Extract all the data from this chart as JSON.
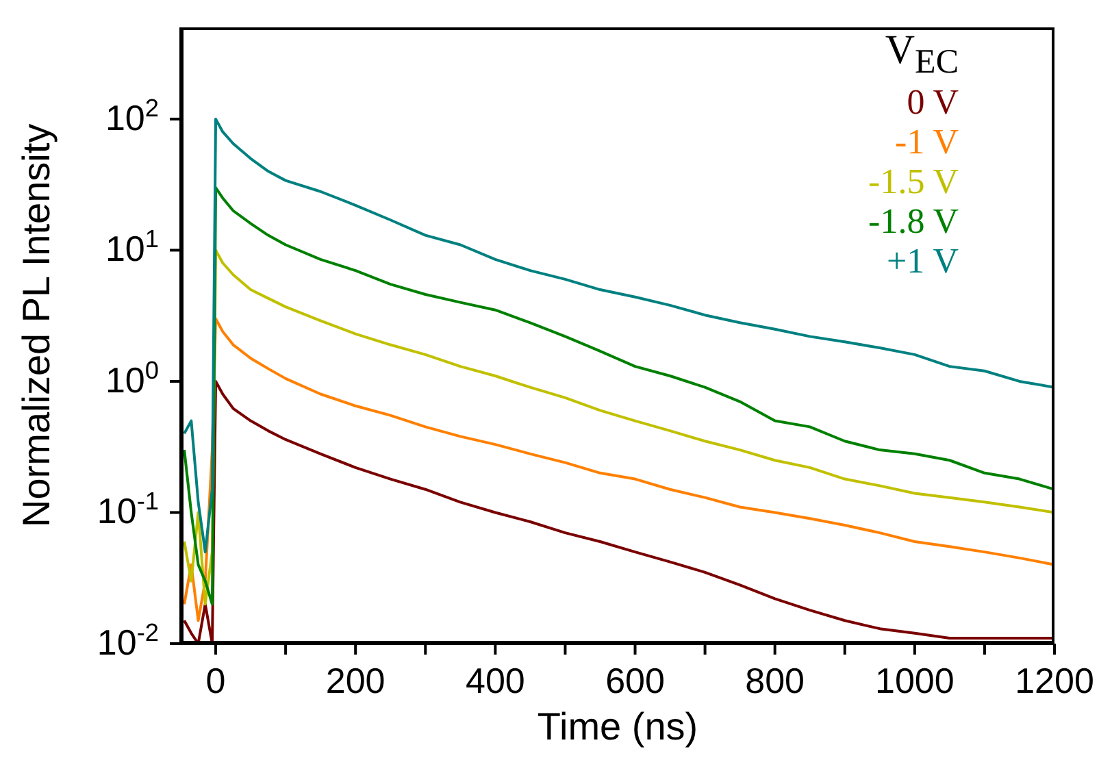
{
  "chart_data": {
    "type": "line",
    "xlabel": "Time (ns)",
    "ylabel": "Normalized PL Intensity",
    "legend_title": "V$_{EC}$",
    "legend": "top right",
    "marker": "none",
    "line_style": "solid",
    "log": "y",
    "xlim": [
      -50,
      1200
    ],
    "xticks": [
      0,
      {
        "value": 100,
        "label": null
      },
      200,
      {
        "value": 300,
        "label": null
      },
      400,
      {
        "value": 500,
        "label": null
      },
      600,
      {
        "value": 700,
        "label": null
      },
      800,
      {
        "value": 900,
        "label": null
      },
      1000,
      {
        "value": 1100,
        "label": null
      },
      1200
    ],
    "ylim": [
      0.01,
      500
    ],
    "yticks": [
      {
        "value": 0.01,
        "label": "10$^{-2}$"
      },
      {
        "value": 0.1,
        "label": "10$^{-1}$"
      },
      {
        "value": 1,
        "label": "10$^{0}$"
      },
      {
        "value": 10,
        "label": "10$^{1}$"
      },
      {
        "value": 100,
        "label": "10$^{2}$"
      }
    ],
    "x": [
      -45,
      -35,
      -25,
      -15,
      -5,
      0,
      10,
      25,
      50,
      75,
      100,
      150,
      200,
      250,
      300,
      350,
      400,
      450,
      500,
      550,
      600,
      650,
      700,
      750,
      800,
      850,
      900,
      950,
      1000,
      1050,
      1100,
      1150,
      1200
    ],
    "series": [
      {
        "name": "0 V",
        "color": "#7a0000",
        "values": [
          0.015,
          0.012,
          0.01,
          0.02,
          0.01,
          1,
          0.8,
          0.62,
          0.5,
          0.42,
          0.36,
          0.28,
          0.22,
          0.18,
          0.15,
          0.12,
          0.1,
          0.085,
          0.07,
          0.06,
          0.05,
          0.042,
          0.035,
          0.028,
          0.022,
          0.018,
          0.015,
          0.013,
          0.012,
          0.011,
          0.011,
          0.011,
          0.011
        ]
      },
      {
        "name": "-1 V",
        "color": "#ff8000",
        "values": [
          0.02,
          0.04,
          0.015,
          0.03,
          0.3,
          3,
          2.4,
          1.9,
          1.5,
          1.25,
          1.05,
          0.8,
          0.65,
          0.55,
          0.45,
          0.38,
          0.33,
          0.28,
          0.24,
          0.2,
          0.18,
          0.15,
          0.13,
          0.11,
          0.1,
          0.09,
          0.08,
          0.07,
          0.06,
          0.055,
          0.05,
          0.045,
          0.04
        ]
      },
      {
        "name": "-1.5 V",
        "color": "#c0c000",
        "values": [
          0.06,
          0.03,
          0.1,
          0.02,
          0.05,
          10,
          8,
          6.5,
          5,
          4.3,
          3.7,
          2.9,
          2.3,
          1.9,
          1.6,
          1.3,
          1.1,
          0.9,
          0.75,
          0.6,
          0.5,
          0.42,
          0.35,
          0.3,
          0.25,
          0.22,
          0.18,
          0.16,
          0.14,
          0.13,
          0.12,
          0.11,
          0.1
        ]
      },
      {
        "name": "-1.8 V",
        "color": "#008000",
        "values": [
          0.3,
          0.1,
          0.04,
          0.03,
          0.02,
          30,
          25,
          20,
          16,
          13,
          11,
          8.5,
          7,
          5.5,
          4.6,
          4,
          3.5,
          2.8,
          2.2,
          1.7,
          1.3,
          1.1,
          0.9,
          0.7,
          0.5,
          0.45,
          0.35,
          0.3,
          0.28,
          0.25,
          0.2,
          0.18,
          0.15
        ]
      },
      {
        "name": "+1 V",
        "color": "#008080",
        "values": [
          0.4,
          0.5,
          0.12,
          0.05,
          0.15,
          100,
          80,
          65,
          50,
          40,
          34,
          28,
          22,
          17,
          13,
          11,
          8.5,
          7,
          6,
          5,
          4.4,
          3.8,
          3.2,
          2.8,
          2.5,
          2.2,
          2,
          1.8,
          1.6,
          1.3,
          1.2,
          1,
          0.9
        ]
      }
    ]
  }
}
